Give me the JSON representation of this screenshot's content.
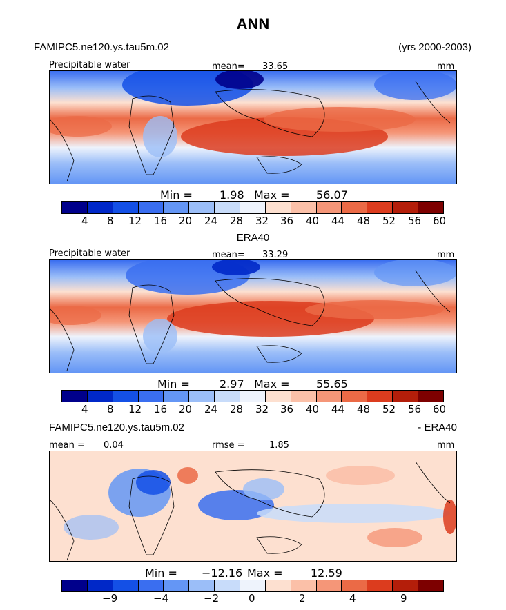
{
  "title": "ANN",
  "header_left": "FAMIPC5.ne120.ys.tau5m.02",
  "header_right": "(yrs 2000-2003)",
  "panels": [
    {
      "label_left": "Precipitable water",
      "mean_label": "mean=",
      "mean_value": "33.65",
      "units": "mm",
      "min_label": "Min =",
      "min_value": "1.98",
      "max_label": "Max =",
      "max_value": "56.07",
      "ticks": [
        "4",
        "8",
        "12",
        "16",
        "20",
        "24",
        "28",
        "32",
        "36",
        "40",
        "44",
        "48",
        "52",
        "56",
        "60"
      ]
    },
    {
      "title": "ERA40",
      "label_left": "Precipitable water",
      "mean_label": "mean=",
      "mean_value": "33.29",
      "units": "mm",
      "min_label": "Min =",
      "min_value": "2.97",
      "max_label": "Max =",
      "max_value": "55.65",
      "ticks": [
        "4",
        "8",
        "12",
        "16",
        "20",
        "24",
        "28",
        "32",
        "36",
        "40",
        "44",
        "48",
        "52",
        "56",
        "60"
      ]
    },
    {
      "title_left": "FAMIPC5.ne120.ys.tau5m.02",
      "title_right": "- ERA40",
      "mean_label": "mean =",
      "mean_value": "0.04",
      "rmse_label": "rmse =",
      "rmse_value": "1.85",
      "units": "mm",
      "min_label": "Min =",
      "min_value": "−12.16",
      "max_label": "Max =",
      "max_value": "12.59",
      "ticks": [
        "−9",
        "−4",
        "−2",
        "0",
        "2",
        "4",
        "9"
      ]
    }
  ],
  "colors": {
    "abs_scale": [
      "#00008b",
      "#0028c8",
      "#1450e6",
      "#3a6ef0",
      "#6496f5",
      "#9bbef8",
      "#c8dcfa",
      "#eef3fc",
      "#fde0d0",
      "#fbc0a8",
      "#f59678",
      "#eb6a46",
      "#dc3c1e",
      "#b41e0a",
      "#7d0000"
    ],
    "diff_scale": [
      "#00008b",
      "#0028c8",
      "#1450e6",
      "#3a6ef0",
      "#6496f5",
      "#9bbef8",
      "#c8dcfa",
      "#eef3fc",
      "#fde0d0",
      "#fbc0a8",
      "#f59678",
      "#eb6a46",
      "#dc3c1e",
      "#b41e0a",
      "#7d0000"
    ]
  }
}
